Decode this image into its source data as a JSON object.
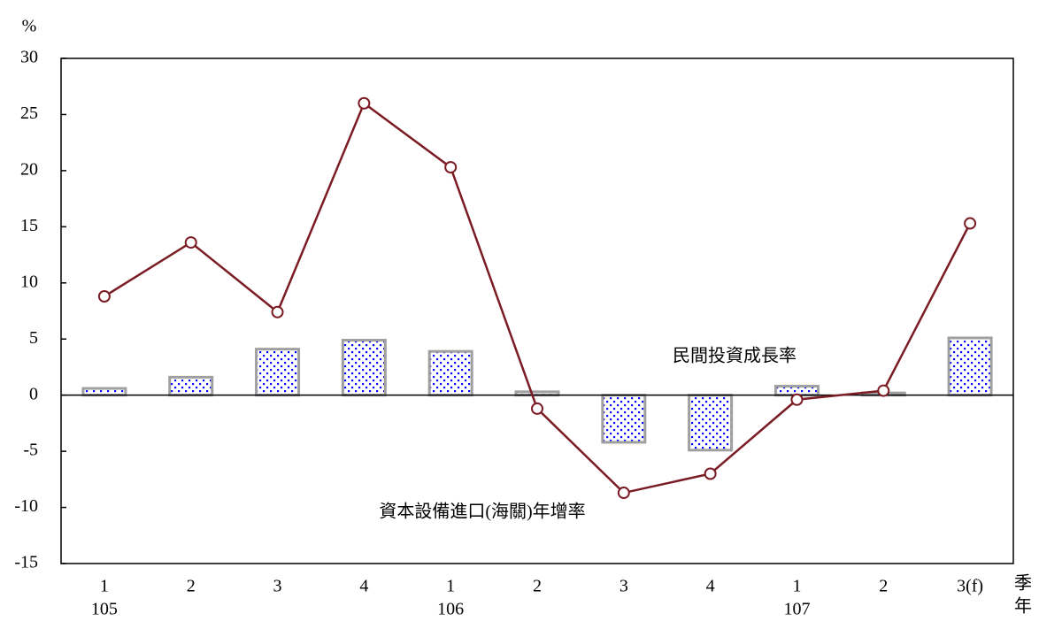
{
  "chart_data": {
    "type": "bar-line",
    "y_unit": "%",
    "x_label_top": "季",
    "x_label_bottom": "年",
    "categories": [
      "1",
      "2",
      "3",
      "4",
      "1",
      "2",
      "3",
      "4",
      "1",
      "2",
      "3(f)"
    ],
    "year_labels": [
      "105",
      null,
      null,
      null,
      "106",
      null,
      null,
      null,
      "107",
      null,
      null
    ],
    "ylim": [
      -15,
      30
    ],
    "yticks": [
      -15,
      -10,
      -5,
      0,
      5,
      10,
      15,
      20,
      25,
      30
    ],
    "series": [
      {
        "name": "民間投資成長率",
        "type": "bar",
        "color": "#0000ff",
        "edge_color": "#a0a0a0",
        "label_color": "#1f2a5a",
        "values": [
          0.6,
          1.6,
          4.1,
          4.9,
          3.9,
          0.3,
          -4.2,
          -4.9,
          0.8,
          0.2,
          5.1
        ]
      },
      {
        "name": "資本設備進口(海關)年增率",
        "type": "line",
        "color": "#7b1c24",
        "values": [
          8.8,
          13.6,
          7.4,
          26.0,
          20.3,
          -1.2,
          -8.7,
          -7.0,
          -0.4,
          0.4,
          15.3
        ]
      }
    ]
  }
}
